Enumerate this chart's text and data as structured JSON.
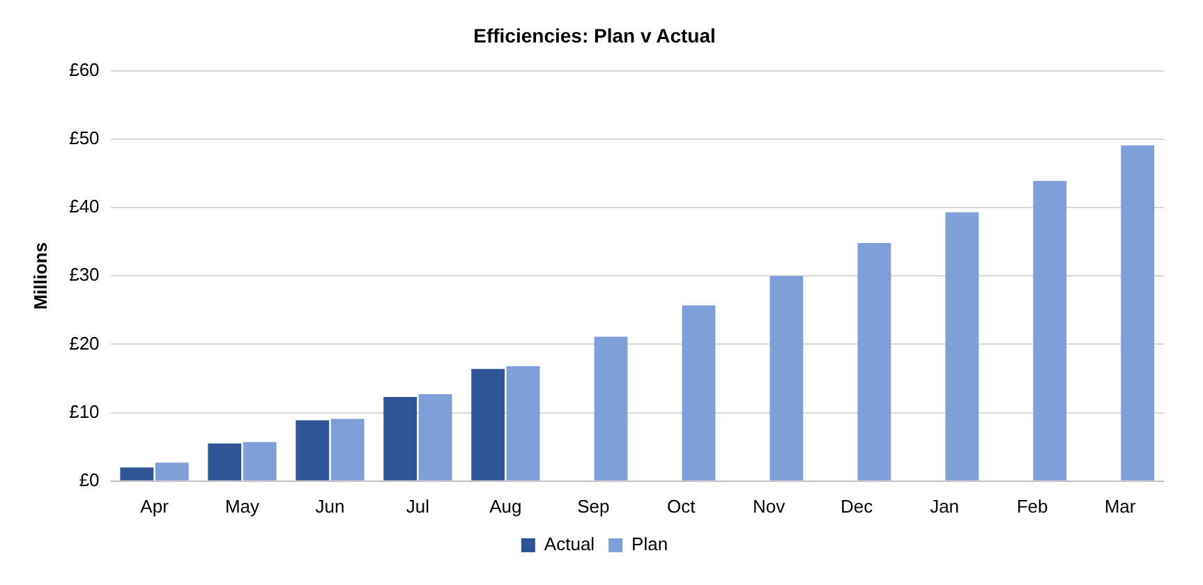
{
  "chart_data": {
    "type": "bar",
    "title": "Efficiencies: Plan v Actual",
    "ylabel": "Millions",
    "categories": [
      "Apr",
      "May",
      "Jun",
      "Jul",
      "Aug",
      "Sep",
      "Oct",
      "Nov",
      "Dec",
      "Jan",
      "Feb",
      "Mar"
    ],
    "series": [
      {
        "name": "Actual",
        "color": "#2f5597",
        "values": [
          2.0,
          5.5,
          8.9,
          12.3,
          16.4,
          null,
          null,
          null,
          null,
          null,
          null,
          null
        ]
      },
      {
        "name": "Plan",
        "color": "#7f9fd8",
        "values": [
          2.7,
          5.7,
          9.1,
          12.7,
          16.8,
          21.1,
          25.7,
          30.0,
          34.8,
          39.3,
          43.9,
          49.1
        ]
      }
    ],
    "ylim": [
      0,
      60
    ],
    "yticks": [
      {
        "value": 0,
        "label": "£0"
      },
      {
        "value": 10,
        "label": "£10"
      },
      {
        "value": 20,
        "label": "£20"
      },
      {
        "value": 30,
        "label": "£30"
      },
      {
        "value": 40,
        "label": "£40"
      },
      {
        "value": 50,
        "label": "£50"
      },
      {
        "value": 60,
        "label": "£60"
      }
    ],
    "grid": "y",
    "legend": "bottom"
  }
}
